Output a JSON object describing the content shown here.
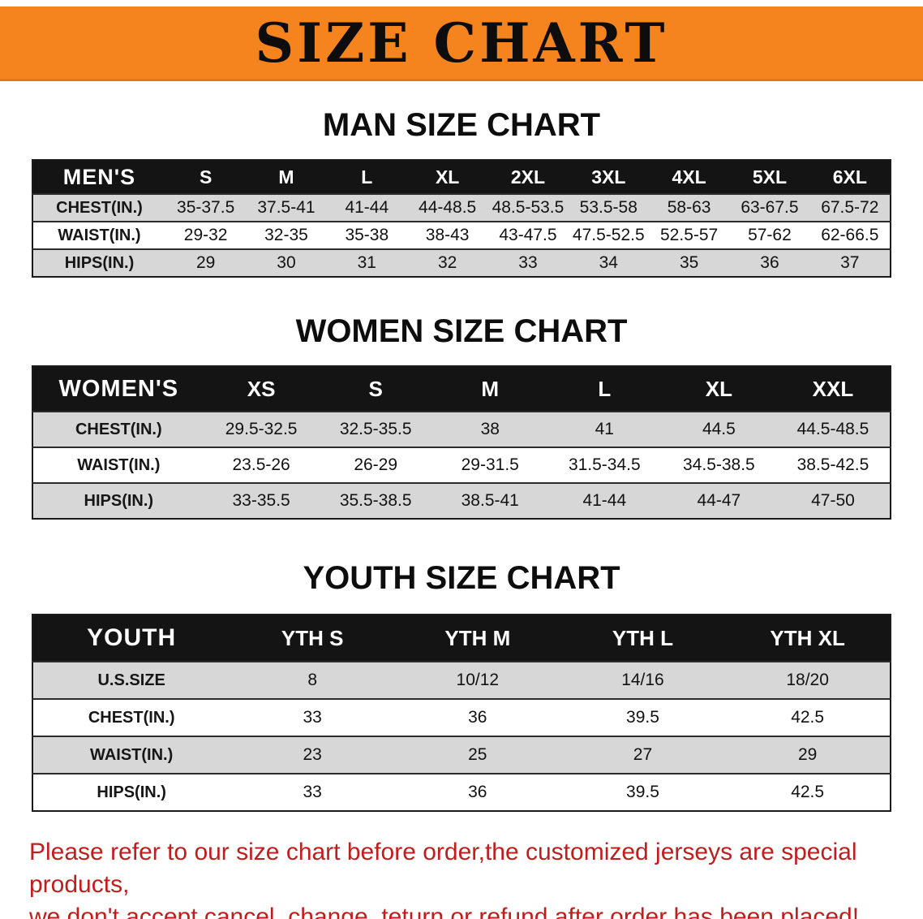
{
  "banner": {
    "title": "SIZE CHART",
    "bg_color": "#f5841e"
  },
  "colors": {
    "table_header_bg": "#141414",
    "row_stripe_gray": "#d7d7d7",
    "footer_text": "#c11d1d"
  },
  "sections": [
    {
      "heading": "MAN SIZE CHART",
      "table": {
        "header": [
          "MEN'S",
          "S",
          "M",
          "L",
          "XL",
          "2XL",
          "3XL",
          "4XL",
          "5XL",
          "6XL"
        ],
        "rows": [
          {
            "label": "CHEST(IN.)",
            "values": [
              "35-37.5",
              "37.5-41",
              "41-44",
              "44-48.5",
              "48.5-53.5",
              "53.5-58",
              "58-63",
              "63-67.5",
              "67.5-72"
            ]
          },
          {
            "label": "WAIST(IN.)",
            "values": [
              "29-32",
              "32-35",
              "35-38",
              "38-43",
              "43-47.5",
              "47.5-52.5",
              "52.5-57",
              "57-62",
              "62-66.5"
            ]
          },
          {
            "label": "HIPS(IN.)",
            "values": [
              "29",
              "30",
              "31",
              "32",
              "33",
              "34",
              "35",
              "36",
              "37"
            ]
          }
        ]
      }
    },
    {
      "heading": "WOMEN SIZE CHART",
      "table": {
        "header": [
          "WOMEN'S",
          "XS",
          "S",
          "M",
          "L",
          "XL",
          "XXL"
        ],
        "rows": [
          {
            "label": "CHEST(IN.)",
            "values": [
              "29.5-32.5",
              "32.5-35.5",
              "38",
              "41",
              "44.5",
              "44.5-48.5"
            ]
          },
          {
            "label": "WAIST(IN.)",
            "values": [
              "23.5-26",
              "26-29",
              "29-31.5",
              "31.5-34.5",
              "34.5-38.5",
              "38.5-42.5"
            ]
          },
          {
            "label": "HIPS(IN.)",
            "values": [
              "33-35.5",
              "35.5-38.5",
              "38.5-41",
              "41-44",
              "44-47",
              "47-50"
            ]
          }
        ]
      }
    },
    {
      "heading": "YOUTH SIZE CHART",
      "table": {
        "header": [
          "YOUTH",
          "YTH S",
          "YTH M",
          "YTH L",
          "YTH XL"
        ],
        "rows": [
          {
            "label": "U.S.SIZE",
            "values": [
              "8",
              "10/12",
              "14/16",
              "18/20"
            ]
          },
          {
            "label": "CHEST(IN.)",
            "values": [
              "33",
              "36",
              "39.5",
              "42.5"
            ]
          },
          {
            "label": "WAIST(IN.)",
            "values": [
              "23",
              "25",
              "27",
              "29"
            ]
          },
          {
            "label": "HIPS(IN.)",
            "values": [
              "33",
              "36",
              "39.5",
              "42.5"
            ]
          }
        ]
      }
    }
  ],
  "footer": {
    "line1": "Please refer to our size chart before order,the customized jerseys are special products,",
    "line2": "we don't accept cancel, change, teturn or refund after order has been placed!"
  }
}
